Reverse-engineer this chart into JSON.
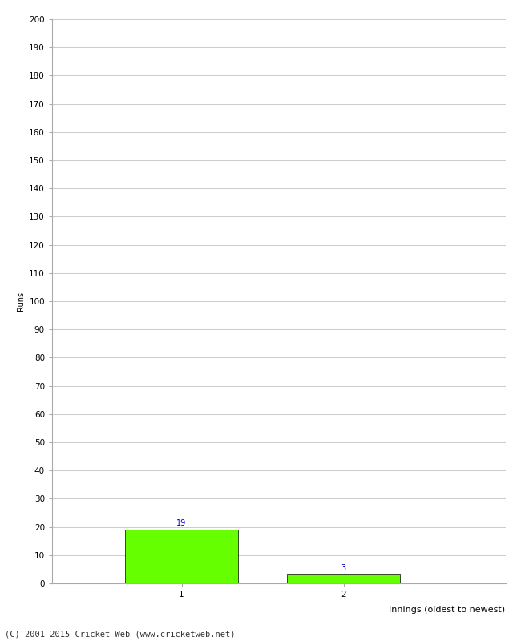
{
  "categories": [
    1,
    2
  ],
  "values": [
    19,
    3
  ],
  "bar_color": "#66ff00",
  "bar_edge_color": "#000000",
  "xlabel": "Innings (oldest to newest)",
  "ylabel": "Runs",
  "ylim": [
    0,
    200
  ],
  "ytick_step": 10,
  "background_color": "#ffffff",
  "grid_color": "#cccccc",
  "footer_text": "(C) 2001-2015 Cricket Web (www.cricketweb.net)",
  "label_color": "#0000cc",
  "label_fontsize": 7,
  "footer_fontsize": 7.5,
  "xlabel_fontsize": 8,
  "ylabel_fontsize": 7,
  "tick_fontsize": 7.5,
  "bar_width": 0.7,
  "xlim": [
    0.2,
    3.0
  ]
}
